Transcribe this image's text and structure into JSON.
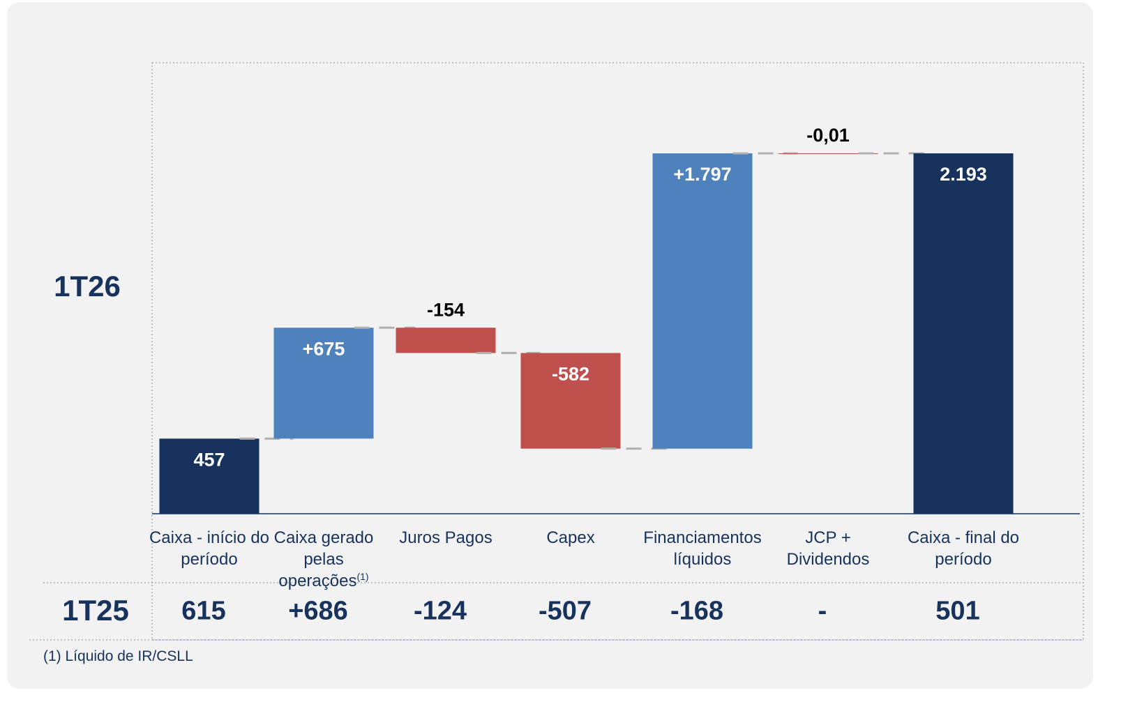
{
  "chart_data": {
    "type": "waterfall",
    "series_label": "1T26",
    "categories": [
      "Caixa - início do período",
      "Caixa gerado pelas operações",
      "Juros Pagos",
      "Capex",
      "Financiamentos líquidos",
      "JCP + Dividendos",
      "Caixa - final do período"
    ],
    "category_marks": [
      null,
      "(1)",
      null,
      null,
      null,
      null,
      null
    ],
    "measure": [
      "absolute",
      "relative",
      "relative",
      "relative",
      "relative",
      "relative",
      "total"
    ],
    "values": [
      457,
      675,
      -154,
      -582,
      1797,
      -0.01,
      2193
    ],
    "value_labels": [
      "457",
      "+675",
      "-154",
      "-582",
      "+1.797",
      "-0,01",
      "2.193"
    ],
    "colors": {
      "total": "#17325c",
      "increase": "#4f81bd",
      "decrease": "#c0504d"
    },
    "comparison": {
      "label": "1T25",
      "values": [
        615,
        686,
        -124,
        -507,
        -168,
        null,
        501
      ],
      "value_labels": [
        "615",
        "+686",
        "-124",
        "-507",
        "-168",
        "-",
        "501"
      ]
    },
    "footnote": "(1) Líquido de IR/CSLL"
  }
}
